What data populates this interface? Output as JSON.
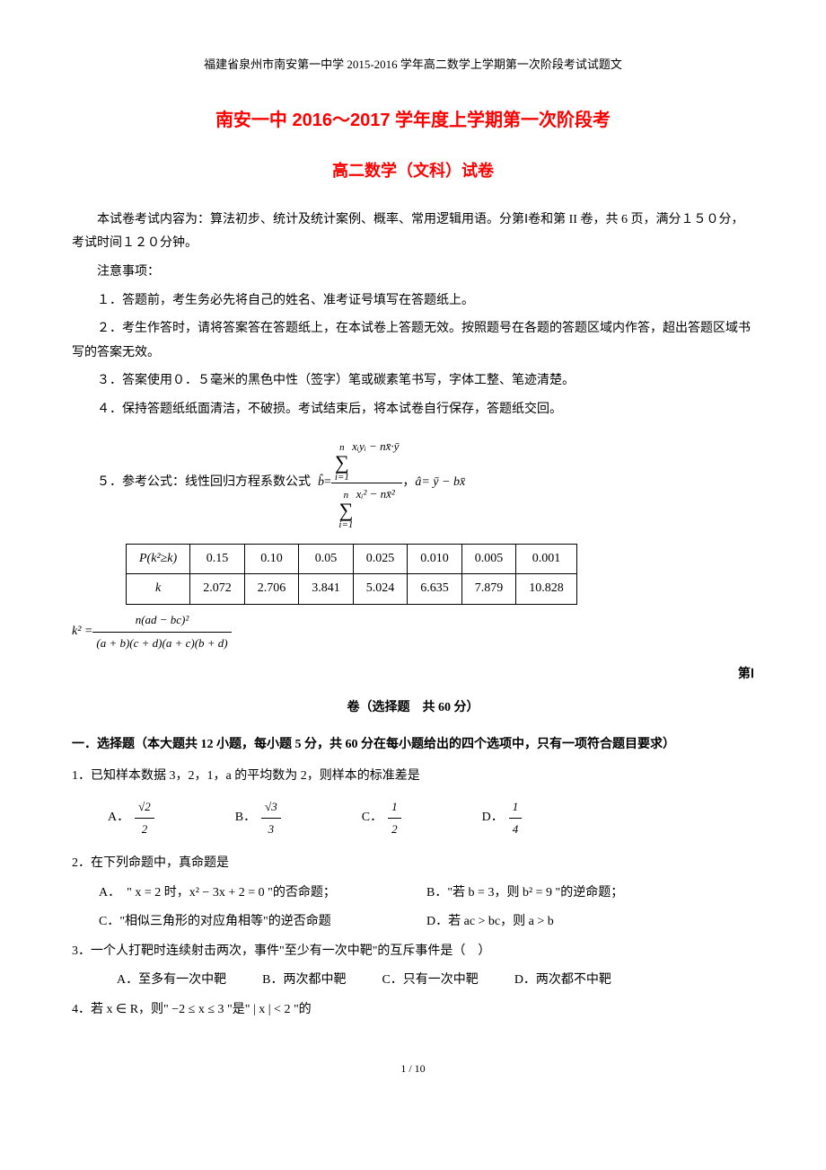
{
  "header": "福建省泉州市南安第一中学 2015-2016 学年高二数学上学期第一次阶段考试试题文",
  "title": "南安一中 2016～2017 学年度上学期第一次阶段考",
  "subtitle": "高二数学（文科）试卷",
  "intro1": "本试卷考试内容为：算法初步、统计及统计案例、概率、常用逻辑用语。分第Ⅰ卷和第 II 卷，共 6 页，满分１５０分，考试时间１２０分钟。",
  "notice_label": "注意事项：",
  "notice1": "１．答题前，考生务必先将自己的姓名、准考证号填写在答题纸上。",
  "notice2": "２．考生作答时，请将答案答在答题纸上，在本试卷上答题无效。按照题号在各题的答题区域内作答，超出答题区域书写的答案无效。",
  "notice3": "３．答案使用０．５毫米的黑色中性（签字）笔或碳素笔书写，字体工整、笔迹清楚。",
  "notice4": "４．保持答题纸纸面清洁，不破损。考试结束后，将本试卷自行保存，答题纸交回。",
  "formula_prefix": "５．参考公式：线性回归方程系数公式",
  "b_hat": "b̂",
  "eq": " = ",
  "sum_top": "n",
  "sum_bot": "i=1",
  "num_expr": "xᵢyᵢ − nx̄·ȳ",
  "den_expr": "xᵢ² − nx̄²",
  "formula_suffix1": "，",
  "a_hat": "â",
  "formula_suffix2": " = ȳ − bx̄",
  "table": {
    "r1": [
      "P(k²≥k)",
      "0.15",
      "0.10",
      "0.05",
      "0.025",
      "0.010",
      "0.005",
      "0.001"
    ],
    "r2": [
      "k",
      "2.072",
      "2.706",
      "3.841",
      "5.024",
      "6.635",
      "7.879",
      "10.828"
    ]
  },
  "k2_lhs": "k² = ",
  "k2_num": "n(ad − bc)²",
  "k2_den": "(a + b)(c + d)(a + c)(b + d)",
  "section1_right": "第Ⅰ",
  "section1_center": "卷（选择题　共 60 分）",
  "part1_title": "一．选择题（本大题共 12 小题，每小题 5 分，共 60 分在每小题给出的四个选项中，只有一项符合题目要求）",
  "q1": {
    "text": "1．已知样本数据 3，2，1，a 的平均数为 2，则样本的标准差是",
    "opts_label": [
      "A．",
      "B．",
      "C．",
      "D．"
    ],
    "opts_num": [
      "√2",
      "√3",
      "1",
      "1"
    ],
    "opts_den": [
      "2",
      "3",
      "2",
      "4"
    ]
  },
  "q2": {
    "text": "2．在下列命题中，真命题是",
    "a_prefix": "A．　\" x = 2 时，x² − 3x + 2 = 0 \"的否命题；",
    "b": "B．\"若 b = 3，则 b² = 9 \"的逆命题；",
    "c": "C．\"相似三角形的对应角相等\"的逆否命题",
    "d": "D．若 ac > bc，则 a > b"
  },
  "q3": {
    "text": "3．一个人打靶时连续射击两次，事件\"至少有一次中靶\"的互斥事件是（　）",
    "a": "A．至多有一次中靶",
    "b": "B．两次都中靶",
    "c": "C．只有一次中靶",
    "d": "D．两次都不中靶"
  },
  "q4": {
    "text": "4．若 x ∈ R，则\" −2 ≤ x ≤ 3 \"是\" | x | < 2 \"的"
  },
  "page": "1 / 10"
}
